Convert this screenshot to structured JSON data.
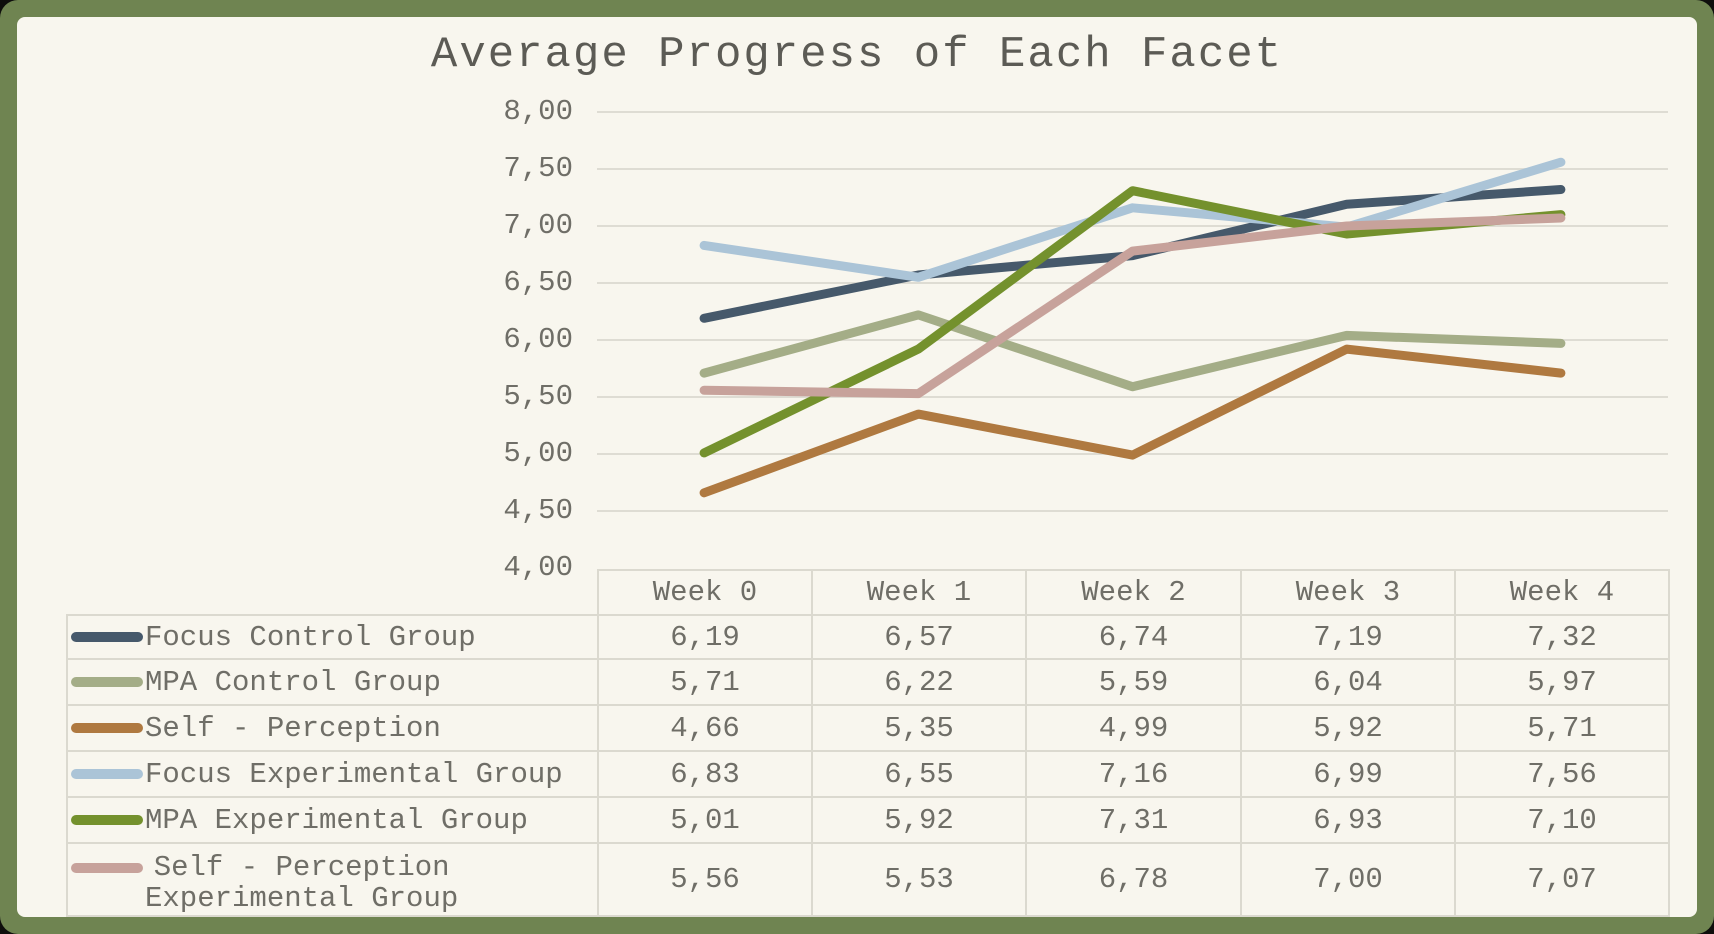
{
  "window": {
    "frame_color": "#6f8451",
    "background_color": "#f8f6ee",
    "grid_color": "#dedcd3",
    "table_border_color": "#dbd9cf",
    "text_color": "#6f6e67",
    "title_color": "#5c5b55"
  },
  "chart_data": {
    "type": "line",
    "title": "Average Progress of Each Facet",
    "categories": [
      "Week 0",
      "Week 1",
      "Week 2",
      "Week 3",
      "Week 4"
    ],
    "series": [
      {
        "name": "Focus Control Group",
        "label_lines": [
          "Focus Control Group"
        ],
        "color": "#46596b",
        "values": [
          6.19,
          6.57,
          6.74,
          7.19,
          7.32
        ]
      },
      {
        "name": "MPA Control Group",
        "label_lines": [
          "MPA Control Group"
        ],
        "color": "#a4ad87",
        "values": [
          5.71,
          6.22,
          5.59,
          6.04,
          5.97
        ]
      },
      {
        "name": "Self - Perception",
        "label_lines": [
          "Self - Perception"
        ],
        "color": "#af7940",
        "values": [
          4.66,
          5.35,
          4.99,
          5.92,
          5.71
        ]
      },
      {
        "name": "Focus Experimental Group",
        "label_lines": [
          "Focus Experimental Group"
        ],
        "color": "#abc4d7",
        "values": [
          6.83,
          6.55,
          7.16,
          6.99,
          7.56
        ]
      },
      {
        "name": "MPA Experimental Group",
        "label_lines": [
          "MPA Experimental Group"
        ],
        "color": "#74912d",
        "values": [
          5.01,
          5.92,
          7.31,
          6.93,
          7.1
        ]
      },
      {
        "name": "Self - Perception Experimental Group",
        "label_lines": [
          "Self - Perception",
          "Experimental Group"
        ],
        "color": "#c7a29b",
        "values": [
          5.56,
          5.53,
          6.78,
          7.0,
          7.07
        ]
      }
    ],
    "ylim": [
      4.0,
      8.0
    ],
    "ytick_step": 0.5,
    "ytick_labels": [
      "8,00",
      "7,50",
      "7,00",
      "6,50",
      "6,00",
      "5,50",
      "5,00",
      "4,50",
      "4,00"
    ],
    "decimal_separator": ",",
    "grid": true,
    "legend_position": "data-table-left-column"
  }
}
